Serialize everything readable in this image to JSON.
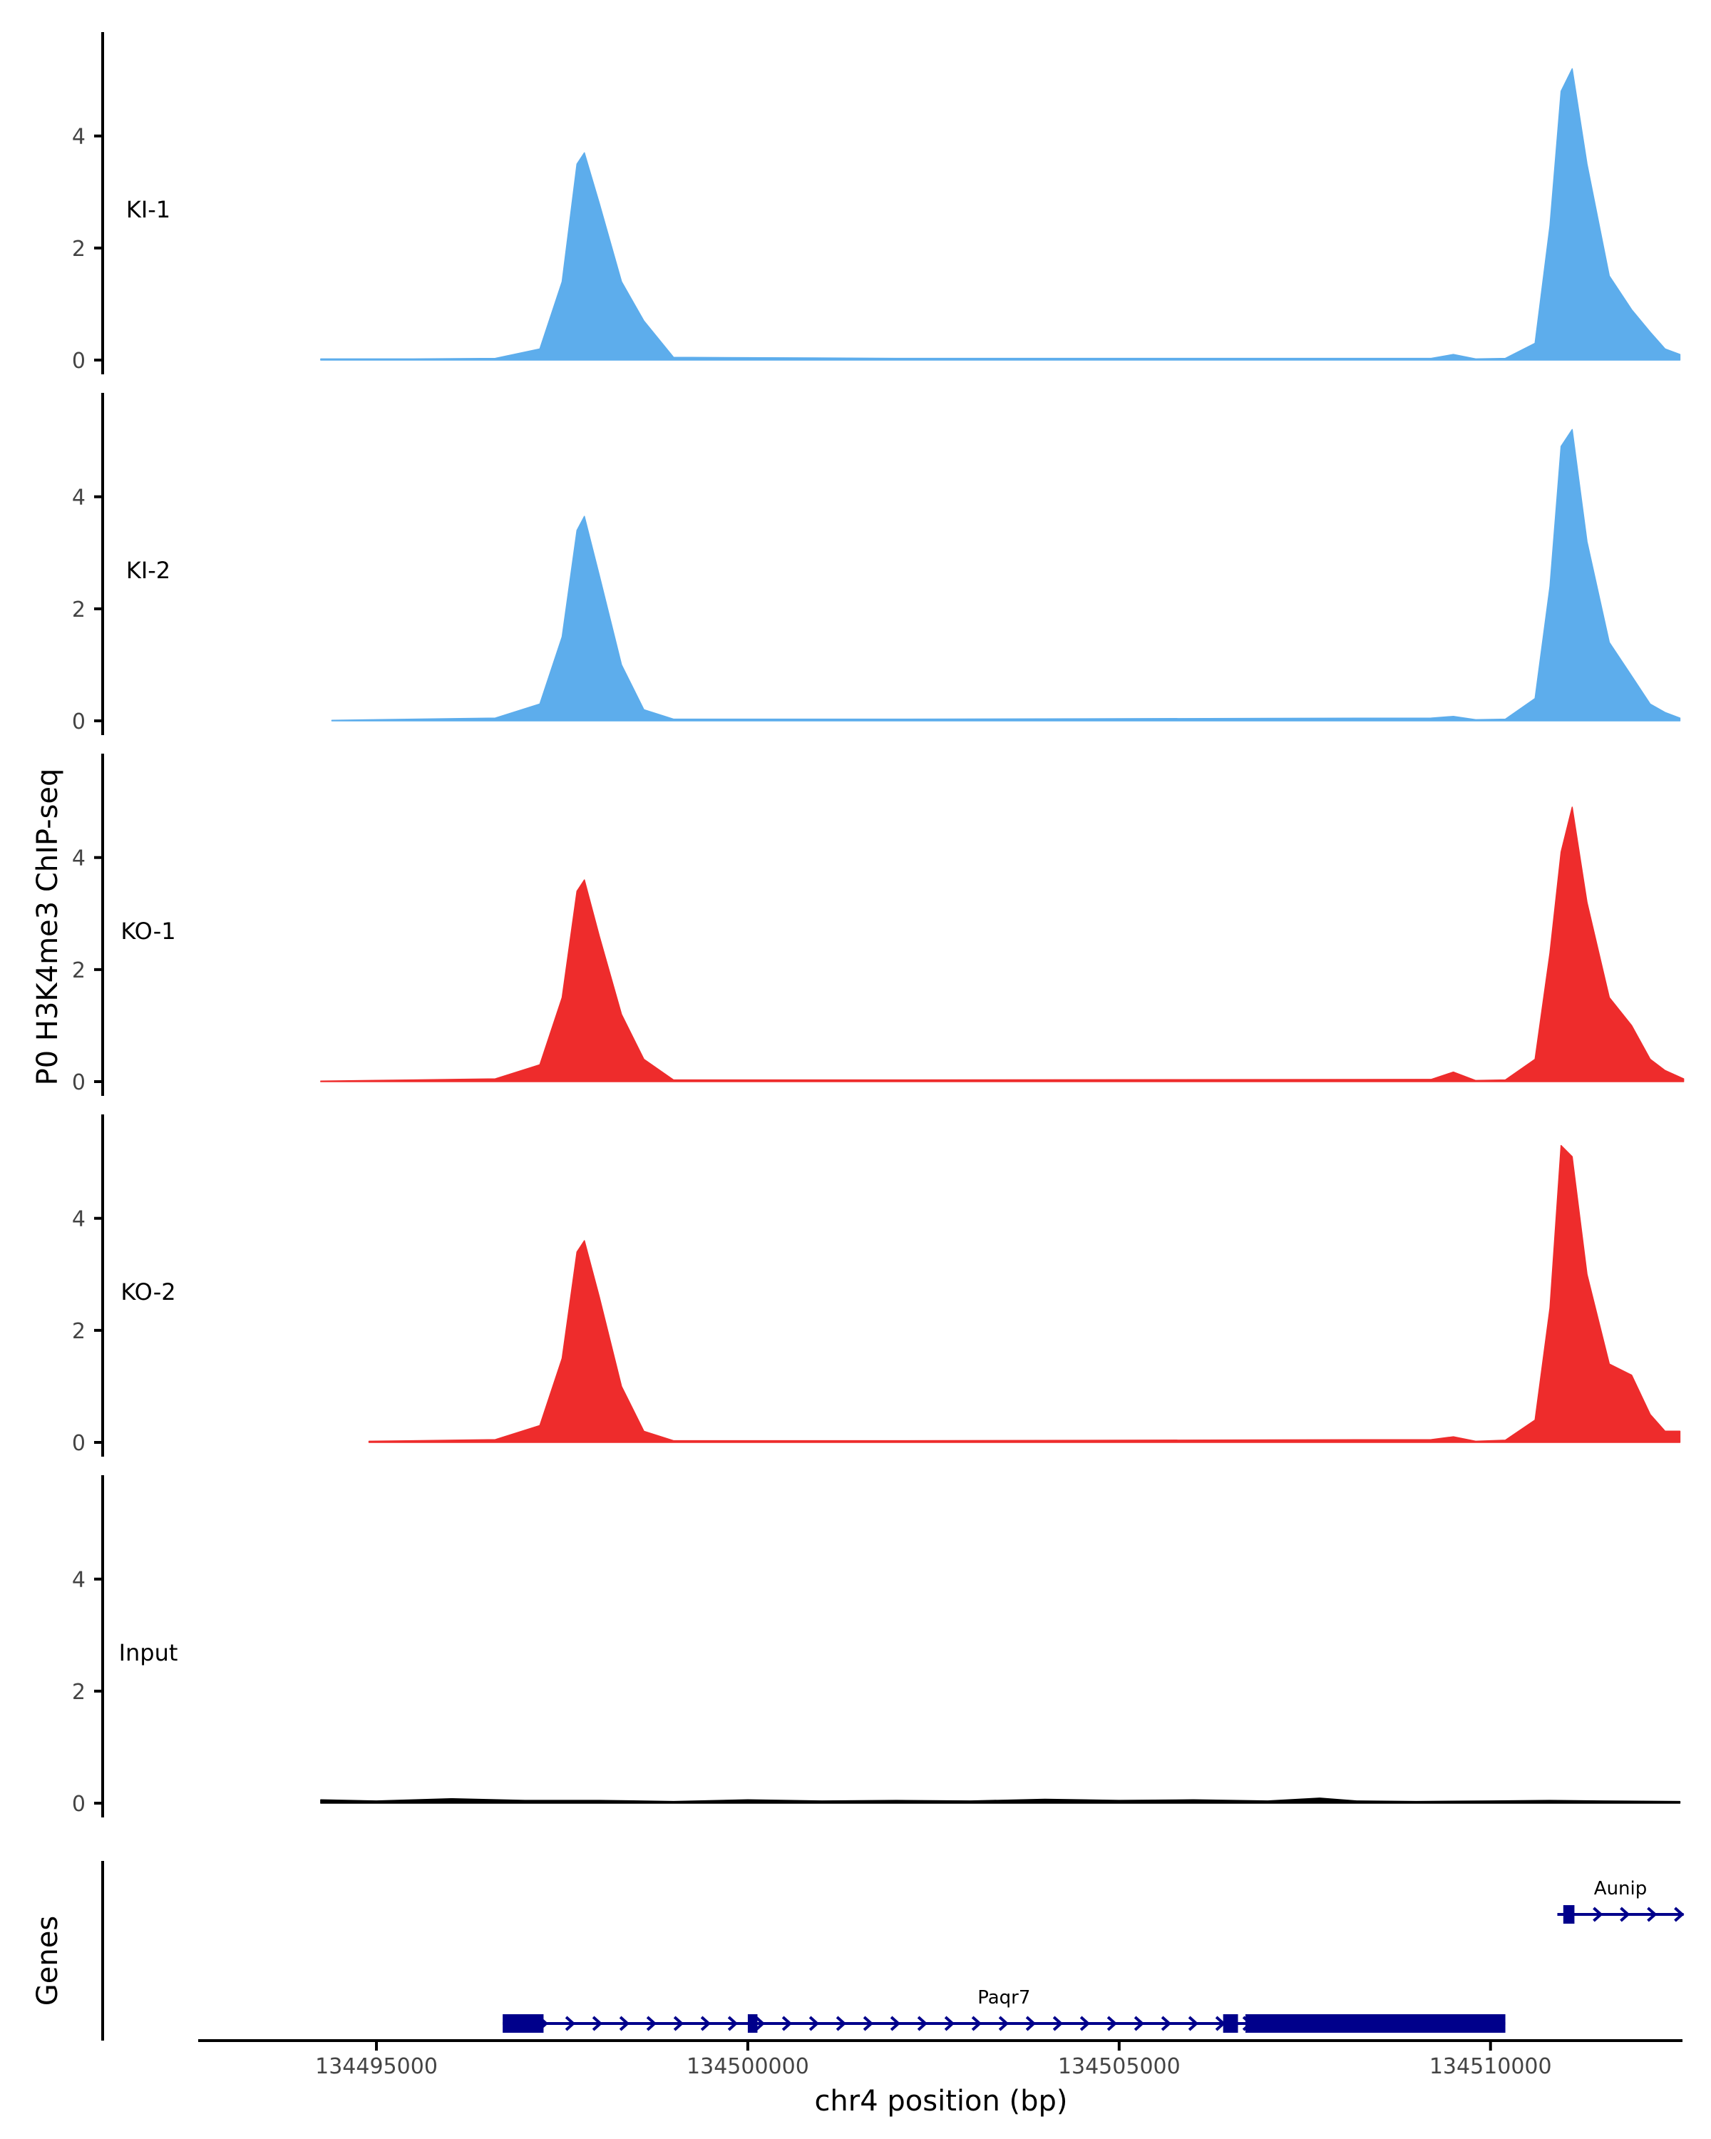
{
  "chart_data": {
    "type": "area",
    "ylabel": "P0 H3K4me3 ChIP-seq",
    "xlabel": "chr4 position (bp)",
    "xlim": [
      134492600,
      134512700
    ],
    "ylim": [
      0,
      5.6
    ],
    "y_ticks": [
      0,
      2,
      4
    ],
    "x_ticks": [
      134495000,
      134500000,
      134505000,
      134510000
    ],
    "x_tick_labels": [
      "134495000",
      "134500000",
      "134505000",
      "134510000"
    ],
    "tracks": [
      {
        "name": "KI-1",
        "color": "#5DADEC",
        "x": [
          134494250,
          134495500,
          134496600,
          134497200,
          134497500,
          134497700,
          134497800,
          134498000,
          134498300,
          134498600,
          134499000,
          134502000,
          134509200,
          134509500,
          134509800,
          134510200,
          134510600,
          134510800,
          134510950,
          134511100,
          134511300,
          134511600,
          134511900,
          134512150,
          134512350,
          134512550
        ],
        "y": [
          0.02,
          0.02,
          0.03,
          0.2,
          1.4,
          3.5,
          3.7,
          2.8,
          1.4,
          0.7,
          0.05,
          0.03,
          0.03,
          0.1,
          0.02,
          0.03,
          0.3,
          2.4,
          4.8,
          5.2,
          3.5,
          1.5,
          0.9,
          0.5,
          0.2,
          0.1
        ]
      },
      {
        "name": "KI-2",
        "color": "#5DADEC",
        "x": [
          134494400,
          134495500,
          134496600,
          134497200,
          134497500,
          134497700,
          134497800,
          134498000,
          134498300,
          134498600,
          134499000,
          134502000,
          134509200,
          134509500,
          134509800,
          134510200,
          134510600,
          134510800,
          134510950,
          134511100,
          134511300,
          134511600,
          134511900,
          134512150,
          134512350,
          134512550
        ],
        "y": [
          0.01,
          0.03,
          0.05,
          0.3,
          1.5,
          3.4,
          3.65,
          2.6,
          1.0,
          0.2,
          0.03,
          0.03,
          0.05,
          0.08,
          0.02,
          0.03,
          0.4,
          2.4,
          4.9,
          5.2,
          3.2,
          1.4,
          0.8,
          0.3,
          0.15,
          0.05
        ]
      },
      {
        "name": "KO-1",
        "color": "#EE2C2C",
        "x": [
          134494250,
          134495500,
          134496600,
          134497200,
          134497500,
          134497700,
          134497800,
          134498000,
          134498300,
          134498600,
          134499000,
          134502000,
          134509200,
          134509500,
          134509800,
          134510200,
          134510600,
          134510800,
          134510950,
          134511100,
          134511300,
          134511600,
          134511900,
          134512150,
          134512350,
          134512600
        ],
        "y": [
          0.01,
          0.03,
          0.05,
          0.3,
          1.5,
          3.4,
          3.6,
          2.6,
          1.2,
          0.4,
          0.03,
          0.03,
          0.04,
          0.17,
          0.02,
          0.03,
          0.4,
          2.3,
          4.1,
          4.9,
          3.2,
          1.5,
          1.0,
          0.4,
          0.2,
          0.05
        ]
      },
      {
        "name": "KO-2",
        "color": "#EE2C2C",
        "x": [
          134494900,
          134495500,
          134496600,
          134497200,
          134497500,
          134497700,
          134497800,
          134498000,
          134498300,
          134498600,
          134499000,
          134502000,
          134509200,
          134509500,
          134509800,
          134510200,
          134510600,
          134510800,
          134510950,
          134511100,
          134511300,
          134511600,
          134511900,
          134512150,
          134512350,
          134512550
        ],
        "y": [
          0.02,
          0.03,
          0.05,
          0.3,
          1.5,
          3.4,
          3.6,
          2.6,
          1.0,
          0.2,
          0.03,
          0.03,
          0.05,
          0.1,
          0.02,
          0.04,
          0.4,
          2.4,
          5.3,
          5.1,
          3.0,
          1.4,
          1.2,
          0.5,
          0.2,
          0.2
        ]
      },
      {
        "name": "Input",
        "color": "#000000",
        "x": [
          134494250,
          134495000,
          134496000,
          134497000,
          134498000,
          134499000,
          134500000,
          134501000,
          134502000,
          134503000,
          134504000,
          134505000,
          134506000,
          134507000,
          134507700,
          134508200,
          134509000,
          134510000,
          134510800,
          134511500,
          134512550
        ],
        "y": [
          0.06,
          0.04,
          0.08,
          0.05,
          0.05,
          0.03,
          0.06,
          0.04,
          0.05,
          0.04,
          0.07,
          0.05,
          0.06,
          0.04,
          0.09,
          0.04,
          0.03,
          0.04,
          0.05,
          0.04,
          0.03
        ]
      }
    ],
    "genes_label": "Genes",
    "genes": [
      {
        "name": "Paqr7",
        "strand": "+",
        "start": 134496700,
        "end": 134510200,
        "exons": [
          [
            134496700,
            134497250
          ],
          [
            134500000,
            134500130
          ],
          [
            134506400,
            134506600
          ],
          [
            134506700,
            134510200
          ]
        ]
      },
      {
        "name": "Aunip",
        "strand": "+",
        "start": 134510900,
        "end": 134512600,
        "exons": [
          [
            134510980,
            134511130
          ]
        ]
      }
    ]
  }
}
